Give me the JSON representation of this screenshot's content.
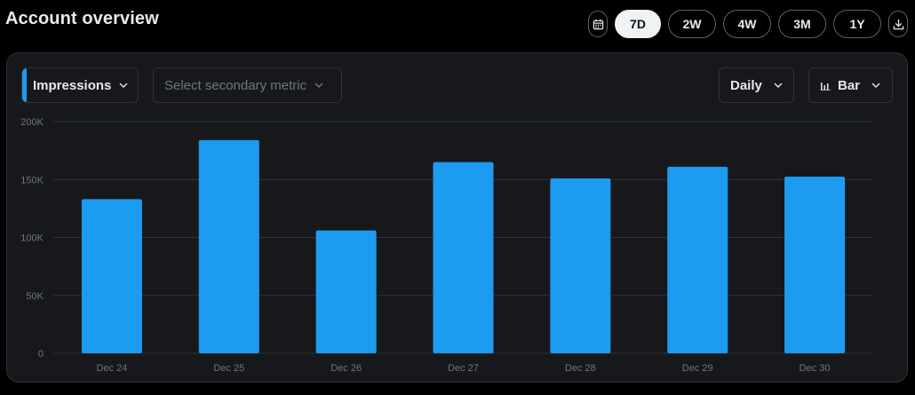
{
  "header": {
    "title": "Account overview"
  },
  "range_selector": {
    "calendar_icon": "calendar-icon",
    "options": [
      "7D",
      "2W",
      "4W",
      "3M",
      "1Y"
    ],
    "selected": "7D",
    "download_icon": "download-icon"
  },
  "controls": {
    "primary_metric": "Impressions",
    "secondary_metric_placeholder": "Select secondary metric",
    "interval": "Daily",
    "chart_type": "Bar",
    "chevron_icon": "chevron-down-icon",
    "bar_chart_icon": "bar-chart-icon"
  },
  "colors": {
    "accent": "#1d9bf0",
    "background": "#000000",
    "card": "#16181c"
  },
  "chart_data": {
    "type": "bar",
    "categories": [
      "Dec 24",
      "Dec 25",
      "Dec 26",
      "Dec 27",
      "Dec 28",
      "Dec 29",
      "Dec 30"
    ],
    "series": [
      {
        "values": [
          133000,
          184000,
          106000,
          165000,
          151000,
          161000,
          152500
        ]
      }
    ],
    "title": "",
    "xlabel": "",
    "ylabel": "",
    "ylim": [
      0,
      200000
    ],
    "yticks": [
      0,
      50000,
      100000,
      150000,
      200000
    ],
    "ytick_labels": [
      "0",
      "50K",
      "100K",
      "150K",
      "200K"
    ],
    "grid": true,
    "legend": "none"
  }
}
